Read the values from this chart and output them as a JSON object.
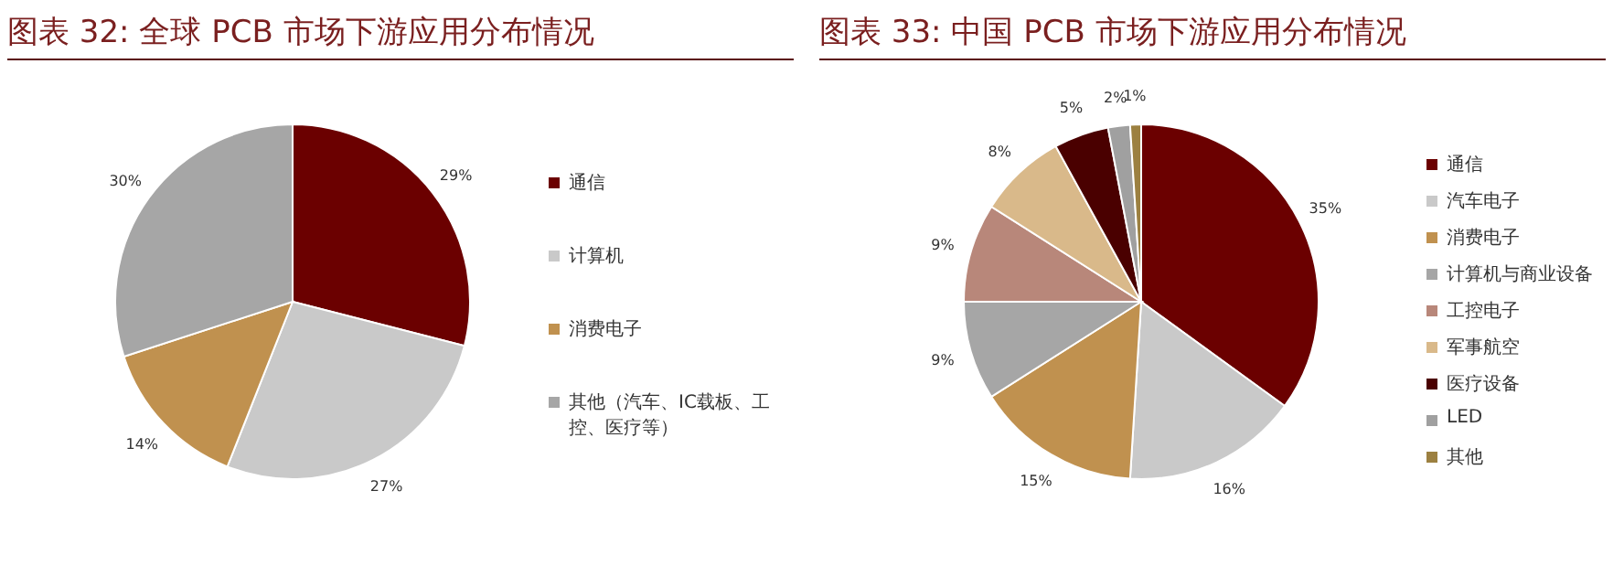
{
  "chart_data": [
    {
      "type": "pie",
      "title": "图表 32: 全球 PCB 市场下游应用分布情况",
      "categories": [
        "通信",
        "计算机",
        "消费电子",
        "其他（汽车、IC载板、工控、医疗等）"
      ],
      "values": [
        29,
        27,
        14,
        30
      ],
      "colors": [
        "#6b0000",
        "#c9c9c9",
        "#c0914f",
        "#a6a6a6"
      ],
      "value_labels": [
        "29%",
        "27%",
        "14%",
        "30%"
      ],
      "legend": "right"
    },
    {
      "type": "pie",
      "title": "图表 33: 中国 PCB 市场下游应用分布情况",
      "categories": [
        "通信",
        "汽车电子",
        "消费电子",
        "计算机与商业设备",
        "工控电子",
        "军事航空",
        "医疗设备",
        "LED",
        "其他"
      ],
      "values": [
        35,
        16,
        15,
        9,
        9,
        8,
        5,
        2,
        1
      ],
      "colors": [
        "#6b0000",
        "#c9c9c9",
        "#c0914f",
        "#a6a6a6",
        "#b8877a",
        "#d9b98a",
        "#4a0000",
        "#a0a0a0",
        "#9c8040"
      ],
      "value_labels": [
        "35%",
        "16%",
        "15%",
        "9%",
        "9%",
        "8%",
        "5%",
        "2%",
        "1%"
      ],
      "legend": "right"
    }
  ]
}
